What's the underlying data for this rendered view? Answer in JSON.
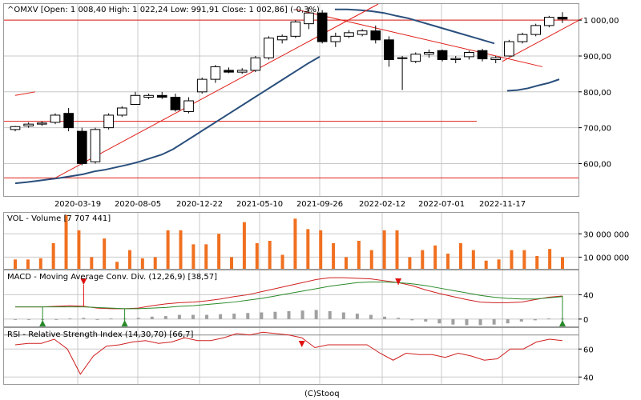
{
  "header": {
    "title": "^OMXV [Open: 1 008,40  High: 1 022,24  Low: 991,91  Close: 1 002,86] (-0,3%)"
  },
  "footer": {
    "credit": "(C)Stooq"
  },
  "colors": {
    "candle_up": "#ffffff",
    "candle_down": "#000000",
    "line_blue": "#2a4f7c",
    "trend_red": "#e0201a",
    "volume_bar": "#f07020",
    "grid": "#c8c8c8",
    "macd_red": "#d02020",
    "macd_green": "#2a8a2a",
    "hist_gray": "#a0a0a0",
    "signal_down": "#e01010",
    "signal_up": "#2a8a2a",
    "rsi_line": "#d02020"
  },
  "chart_data": [
    {
      "type": "candlestick",
      "title": "^OMXV [Open: 1 008,40  High: 1 022,24  Low: 991,91  Close: 1 002,86] (-0,3%)",
      "x_tick_labels": [
        "2020-03-19",
        "2020-08-05",
        "2020-12-22",
        "2021-05-10",
        "2021-09-26",
        "2022-02-12",
        "2022-07-01",
        "2022-11-17"
      ],
      "y_tick_labels": [
        "1 000,00",
        "900,00",
        "800,00",
        "700,00",
        "600,00"
      ],
      "y_ticks": [
        1000,
        900,
        800,
        700,
        600
      ],
      "ylim": [
        543,
        1045
      ],
      "ohlc": [
        [
          695,
          705,
          690,
          703
        ],
        [
          705,
          715,
          700,
          710
        ],
        [
          710,
          718,
          705,
          713
        ],
        [
          715,
          740,
          710,
          735
        ],
        [
          740,
          755,
          690,
          700
        ],
        [
          690,
          700,
          595,
          600
        ],
        [
          605,
          700,
          600,
          695
        ],
        [
          700,
          740,
          695,
          735
        ],
        [
          735,
          760,
          730,
          755
        ],
        [
          765,
          800,
          765,
          790
        ],
        [
          785,
          795,
          780,
          790
        ],
        [
          790,
          800,
          780,
          785
        ],
        [
          785,
          795,
          745,
          750
        ],
        [
          745,
          785,
          740,
          775
        ],
        [
          800,
          840,
          795,
          835
        ],
        [
          835,
          875,
          825,
          870
        ],
        [
          860,
          868,
          852,
          855
        ],
        [
          855,
          866,
          850,
          860
        ],
        [
          860,
          900,
          855,
          895
        ],
        [
          895,
          955,
          890,
          950
        ],
        [
          945,
          960,
          935,
          955
        ],
        [
          955,
          1000,
          950,
          995
        ],
        [
          990,
          1035,
          975,
          1020
        ],
        [
          1020,
          1028,
          935,
          940
        ],
        [
          940,
          965,
          925,
          955
        ],
        [
          955,
          972,
          950,
          965
        ],
        [
          960,
          975,
          955,
          970
        ],
        [
          970,
          985,
          935,
          945
        ],
        [
          945,
          955,
          870,
          890
        ],
        [
          893,
          900,
          805,
          895
        ],
        [
          885,
          910,
          880,
          905
        ],
        [
          905,
          918,
          895,
          910
        ],
        [
          915,
          918,
          885,
          890
        ],
        [
          890,
          900,
          880,
          893
        ],
        [
          898,
          915,
          890,
          910
        ],
        [
          915,
          920,
          885,
          892
        ],
        [
          890,
          900,
          880,
          895
        ],
        [
          900,
          945,
          898,
          940
        ],
        [
          940,
          965,
          935,
          960
        ],
        [
          960,
          990,
          955,
          985
        ],
        [
          985,
          1012,
          980,
          1008
        ],
        [
          1008,
          1022,
          992,
          1003
        ]
      ],
      "blue_line": {
        "segment1": [
          545,
          548,
          552,
          556,
          560,
          565,
          570,
          578,
          583,
          590,
          597,
          605,
          615,
          625,
          640,
          660,
          680,
          700,
          720,
          740,
          760,
          780,
          800,
          820,
          840,
          860,
          880,
          898
        ],
        "segment2_start": [
          1030,
          1030,
          1028,
          1025,
          1020,
          1012,
          1005,
          995,
          985,
          975,
          965,
          955,
          945,
          935
        ],
        "segment3_end": [
          803,
          805,
          810,
          818,
          825,
          835
        ]
      },
      "horizontal_lines": [
        {
          "y": 1000,
          "x_span": "full"
        },
        {
          "y": 718,
          "x_span": "partial"
        },
        {
          "y": 560,
          "x_span": "full"
        }
      ],
      "trend_lines": [
        {
          "x0_index": 0,
          "y0": 790,
          "x1_index": 1.5,
          "y1": 800,
          "label": ""
        },
        {
          "x0_index": 3,
          "y0": 560,
          "x1_index": 27.2,
          "y1": 1045,
          "label": ""
        },
        {
          "x0_index": 21,
          "y0": 1030,
          "x1_index": 39.5,
          "y1": 870,
          "label": ""
        },
        {
          "x0_index": 36.5,
          "y0": 885,
          "x1_index": 42.5,
          "y1": 1005,
          "label": ""
        }
      ]
    },
    {
      "type": "bar",
      "title": "VOL - Volume [7 707 441]",
      "y_tick_labels": [
        "30 000 000",
        "10 000 000"
      ],
      "y_ticks": [
        30000000,
        10000000
      ],
      "ylim": [
        0,
        48000000
      ],
      "values": [
        8,
        8,
        9,
        22,
        46,
        33,
        10,
        26,
        6,
        16,
        9,
        10,
        33,
        33,
        21,
        21,
        30,
        10,
        40,
        22,
        24,
        12,
        43,
        34,
        33,
        22,
        10,
        24,
        16,
        33,
        33,
        10,
        16,
        20,
        13,
        22,
        16,
        7,
        8,
        16,
        16,
        11,
        17,
        10
      ]
    },
    {
      "type": "line",
      "title": "MACD - Moving Average Conv. Div. (12,26,9) [38,57]",
      "y_tick_labels": [
        "40",
        "0"
      ],
      "y_ticks": [
        40,
        0
      ],
      "ylim": [
        -12,
        80
      ],
      "series": [
        {
          "name": "",
          "values": [
            20,
            20,
            20,
            21,
            22,
            21,
            18,
            17,
            17,
            18,
            22,
            25,
            27,
            28,
            30,
            33,
            37,
            40,
            45,
            50,
            55,
            60,
            65,
            68,
            68,
            67,
            66,
            63,
            60,
            55,
            48,
            42,
            37,
            32,
            28,
            27,
            27,
            28,
            32,
            36,
            38
          ]
        },
        {
          "name": "",
          "values": [
            20,
            20,
            20,
            20,
            20,
            20,
            19,
            18,
            17,
            17,
            18,
            19,
            21,
            22,
            24,
            26,
            28,
            31,
            34,
            38,
            42,
            46,
            50,
            54,
            57,
            60,
            61,
            61,
            60,
            58,
            55,
            51,
            47,
            43,
            39,
            36,
            34,
            33,
            33,
            35,
            37
          ]
        }
      ],
      "histogram": [
        0,
        0,
        0,
        0,
        1,
        2,
        -1,
        1,
        1,
        2,
        4,
        5,
        7,
        7,
        7,
        8,
        9,
        10,
        11,
        12,
        13,
        14,
        15,
        13,
        11,
        9,
        7,
        4,
        2,
        -2,
        -4,
        -7,
        -9,
        -10,
        -10,
        -9,
        -7,
        -4,
        -2,
        1,
        1
      ],
      "markers": [
        {
          "index": 2,
          "type": "up"
        },
        {
          "index": 5,
          "type": "down"
        },
        {
          "index": 8,
          "type": "up"
        },
        {
          "index": 28,
          "type": "down"
        },
        {
          "index": 40,
          "type": "up"
        }
      ]
    },
    {
      "type": "line",
      "title": "RSI - Relative Strength Index (14,30,70) [66,7]",
      "y_tick_labels": [
        "60",
        "40"
      ],
      "y_ticks": [
        60,
        40
      ],
      "ylim": [
        35,
        75
      ],
      "reference_lines": [
        30,
        70
      ],
      "values": [
        63,
        64,
        64,
        67,
        60,
        42,
        55,
        62,
        63,
        65,
        66,
        64,
        65,
        68,
        66,
        66,
        68,
        71,
        70,
        72,
        71,
        70,
        68,
        61,
        63,
        63,
        63,
        63,
        57,
        52,
        57,
        56,
        56,
        54,
        57,
        55,
        52,
        53,
        60,
        60,
        65,
        67,
        66
      ],
      "markers": [
        {
          "index": 22,
          "type": "down"
        }
      ]
    }
  ]
}
